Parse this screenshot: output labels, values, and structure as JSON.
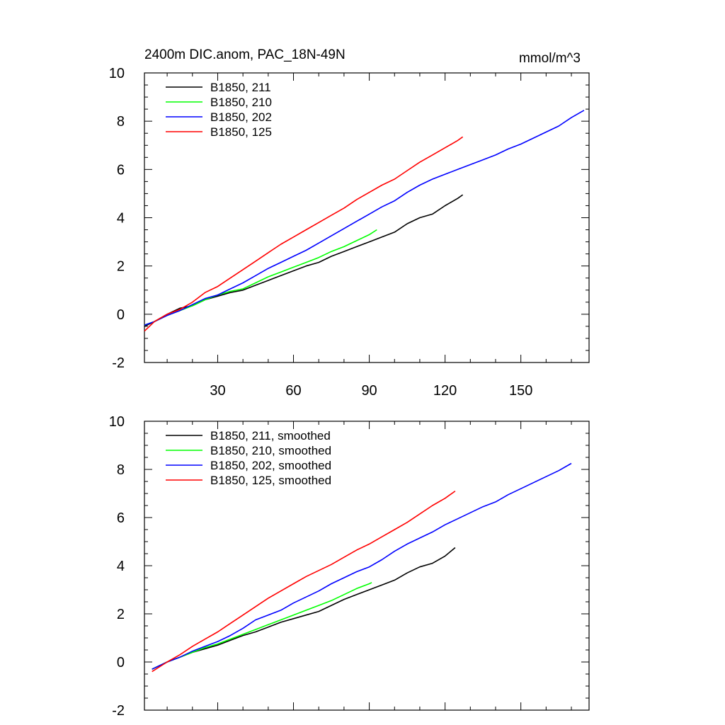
{
  "chart_data": [
    {
      "type": "line",
      "title_left": "2400m DIC.anom, PAC_18N-49N",
      "title_right": "mmol/m^3",
      "xlabel": "",
      "ylabel": "",
      "xlim": [
        1,
        177
      ],
      "ylim": [
        -2,
        10
      ],
      "xticks": [
        30,
        60,
        90,
        120,
        150
      ],
      "yticks": [
        -2,
        0,
        2,
        4,
        6,
        8,
        10
      ],
      "show_x_tick_labels": true,
      "legend_position": "top-left",
      "series": [
        {
          "name": "B1850, 211",
          "color": "#000000",
          "points": [
            [
              1,
              -0.5
            ],
            [
              5,
              -0.3
            ],
            [
              10,
              0.0
            ],
            [
              15,
              0.25
            ],
            [
              20,
              0.35
            ],
            [
              25,
              0.6
            ],
            [
              30,
              0.75
            ],
            [
              35,
              0.9
            ],
            [
              40,
              1.0
            ],
            [
              45,
              1.2
            ],
            [
              50,
              1.4
            ],
            [
              55,
              1.6
            ],
            [
              60,
              1.8
            ],
            [
              65,
              2.0
            ],
            [
              70,
              2.15
            ],
            [
              75,
              2.4
            ],
            [
              80,
              2.6
            ],
            [
              85,
              2.8
            ],
            [
              90,
              3.0
            ],
            [
              95,
              3.2
            ],
            [
              100,
              3.4
            ],
            [
              105,
              3.75
            ],
            [
              110,
              4.0
            ],
            [
              115,
              4.15
            ],
            [
              120,
              4.5
            ],
            [
              125,
              4.8
            ],
            [
              127,
              4.95
            ]
          ]
        },
        {
          "name": "B1850, 210",
          "color": "#00ff00",
          "points": [
            [
              1,
              -0.45
            ],
            [
              5,
              -0.3
            ],
            [
              10,
              -0.05
            ],
            [
              15,
              0.15
            ],
            [
              20,
              0.35
            ],
            [
              25,
              0.6
            ],
            [
              30,
              0.8
            ],
            [
              35,
              0.95
            ],
            [
              40,
              1.05
            ],
            [
              45,
              1.3
            ],
            [
              50,
              1.55
            ],
            [
              55,
              1.75
            ],
            [
              60,
              1.95
            ],
            [
              65,
              2.15
            ],
            [
              70,
              2.35
            ],
            [
              75,
              2.6
            ],
            [
              80,
              2.8
            ],
            [
              85,
              3.05
            ],
            [
              90,
              3.3
            ],
            [
              93,
              3.5
            ]
          ]
        },
        {
          "name": "B1850, 202",
          "color": "#0000ff",
          "points": [
            [
              1,
              -0.45
            ],
            [
              5,
              -0.3
            ],
            [
              10,
              -0.05
            ],
            [
              15,
              0.15
            ],
            [
              20,
              0.4
            ],
            [
              25,
              0.65
            ],
            [
              30,
              0.8
            ],
            [
              35,
              1.05
            ],
            [
              40,
              1.3
            ],
            [
              45,
              1.6
            ],
            [
              50,
              1.9
            ],
            [
              55,
              2.15
            ],
            [
              60,
              2.4
            ],
            [
              65,
              2.65
            ],
            [
              70,
              2.95
            ],
            [
              75,
              3.25
            ],
            [
              80,
              3.55
            ],
            [
              85,
              3.85
            ],
            [
              90,
              4.15
            ],
            [
              95,
              4.45
            ],
            [
              100,
              4.7
            ],
            [
              105,
              5.05
            ],
            [
              110,
              5.35
            ],
            [
              115,
              5.6
            ],
            [
              120,
              5.8
            ],
            [
              125,
              6.0
            ],
            [
              130,
              6.2
            ],
            [
              135,
              6.4
            ],
            [
              140,
              6.6
            ],
            [
              145,
              6.85
            ],
            [
              150,
              7.05
            ],
            [
              155,
              7.3
            ],
            [
              160,
              7.55
            ],
            [
              165,
              7.8
            ],
            [
              170,
              8.15
            ],
            [
              175,
              8.45
            ]
          ]
        },
        {
          "name": "B1850, 125",
          "color": "#ff0000",
          "points": [
            [
              1,
              -0.7
            ],
            [
              5,
              -0.3
            ],
            [
              10,
              0.0
            ],
            [
              15,
              0.2
            ],
            [
              20,
              0.5
            ],
            [
              25,
              0.9
            ],
            [
              30,
              1.15
            ],
            [
              35,
              1.5
            ],
            [
              40,
              1.85
            ],
            [
              45,
              2.2
            ],
            [
              50,
              2.55
            ],
            [
              55,
              2.9
            ],
            [
              60,
              3.2
            ],
            [
              65,
              3.5
            ],
            [
              70,
              3.8
            ],
            [
              75,
              4.1
            ],
            [
              80,
              4.4
            ],
            [
              85,
              4.75
            ],
            [
              90,
              5.05
            ],
            [
              95,
              5.35
            ],
            [
              100,
              5.6
            ],
            [
              105,
              5.95
            ],
            [
              110,
              6.3
            ],
            [
              115,
              6.6
            ],
            [
              120,
              6.9
            ],
            [
              125,
              7.2
            ],
            [
              127,
              7.35
            ]
          ]
        }
      ]
    },
    {
      "type": "line",
      "title_left": "",
      "title_right": "",
      "xlabel": "",
      "ylabel": "",
      "xlim": [
        1,
        177
      ],
      "ylim": [
        -2,
        10
      ],
      "xticks": [
        30,
        60,
        90,
        120,
        150
      ],
      "yticks": [
        -2,
        0,
        2,
        4,
        6,
        8,
        10
      ],
      "show_x_tick_labels": false,
      "legend_position": "top-left",
      "series": [
        {
          "name": "B1850, 211, smoothed",
          "color": "#000000",
          "points": [
            [
              4,
              -0.3
            ],
            [
              10,
              0.0
            ],
            [
              15,
              0.2
            ],
            [
              20,
              0.4
            ],
            [
              25,
              0.55
            ],
            [
              30,
              0.7
            ],
            [
              35,
              0.9
            ],
            [
              40,
              1.1
            ],
            [
              45,
              1.25
            ],
            [
              50,
              1.45
            ],
            [
              55,
              1.65
            ],
            [
              60,
              1.8
            ],
            [
              65,
              1.95
            ],
            [
              70,
              2.1
            ],
            [
              75,
              2.35
            ],
            [
              80,
              2.6
            ],
            [
              85,
              2.8
            ],
            [
              90,
              3.0
            ],
            [
              95,
              3.2
            ],
            [
              100,
              3.4
            ],
            [
              105,
              3.7
            ],
            [
              110,
              3.95
            ],
            [
              115,
              4.1
            ],
            [
              120,
              4.4
            ],
            [
              124,
              4.75
            ]
          ]
        },
        {
          "name": "B1850, 210, smoothed",
          "color": "#00ff00",
          "points": [
            [
              4,
              -0.3
            ],
            [
              10,
              0.0
            ],
            [
              15,
              0.2
            ],
            [
              20,
              0.4
            ],
            [
              25,
              0.6
            ],
            [
              30,
              0.75
            ],
            [
              35,
              0.95
            ],
            [
              40,
              1.15
            ],
            [
              45,
              1.35
            ],
            [
              50,
              1.55
            ],
            [
              55,
              1.75
            ],
            [
              60,
              1.95
            ],
            [
              65,
              2.15
            ],
            [
              70,
              2.35
            ],
            [
              75,
              2.55
            ],
            [
              80,
              2.8
            ],
            [
              85,
              3.05
            ],
            [
              90,
              3.25
            ],
            [
              91,
              3.3
            ]
          ]
        },
        {
          "name": "B1850, 202, smoothed",
          "color": "#0000ff",
          "points": [
            [
              4,
              -0.3
            ],
            [
              10,
              0.0
            ],
            [
              15,
              0.2
            ],
            [
              20,
              0.45
            ],
            [
              25,
              0.65
            ],
            [
              30,
              0.85
            ],
            [
              35,
              1.1
            ],
            [
              40,
              1.4
            ],
            [
              45,
              1.75
            ],
            [
              50,
              1.95
            ],
            [
              55,
              2.15
            ],
            [
              60,
              2.45
            ],
            [
              65,
              2.7
            ],
            [
              70,
              2.95
            ],
            [
              75,
              3.25
            ],
            [
              80,
              3.5
            ],
            [
              85,
              3.75
            ],
            [
              90,
              3.95
            ],
            [
              95,
              4.25
            ],
            [
              100,
              4.6
            ],
            [
              105,
              4.9
            ],
            [
              110,
              5.15
            ],
            [
              115,
              5.4
            ],
            [
              120,
              5.7
            ],
            [
              125,
              5.95
            ],
            [
              130,
              6.2
            ],
            [
              135,
              6.45
            ],
            [
              140,
              6.65
            ],
            [
              145,
              6.95
            ],
            [
              150,
              7.2
            ],
            [
              155,
              7.45
            ],
            [
              160,
              7.7
            ],
            [
              165,
              7.95
            ],
            [
              170,
              8.25
            ]
          ]
        },
        {
          "name": "B1850, 125, smoothed",
          "color": "#ff0000",
          "points": [
            [
              4,
              -0.4
            ],
            [
              10,
              0.0
            ],
            [
              15,
              0.3
            ],
            [
              20,
              0.65
            ],
            [
              25,
              0.95
            ],
            [
              30,
              1.25
            ],
            [
              35,
              1.6
            ],
            [
              40,
              1.95
            ],
            [
              45,
              2.3
            ],
            [
              50,
              2.65
            ],
            [
              55,
              2.95
            ],
            [
              60,
              3.25
            ],
            [
              65,
              3.55
            ],
            [
              70,
              3.8
            ],
            [
              75,
              4.05
            ],
            [
              80,
              4.35
            ],
            [
              85,
              4.65
            ],
            [
              90,
              4.9
            ],
            [
              95,
              5.2
            ],
            [
              100,
              5.5
            ],
            [
              105,
              5.8
            ],
            [
              110,
              6.15
            ],
            [
              115,
              6.5
            ],
            [
              120,
              6.8
            ],
            [
              124,
              7.1
            ]
          ]
        }
      ]
    }
  ]
}
